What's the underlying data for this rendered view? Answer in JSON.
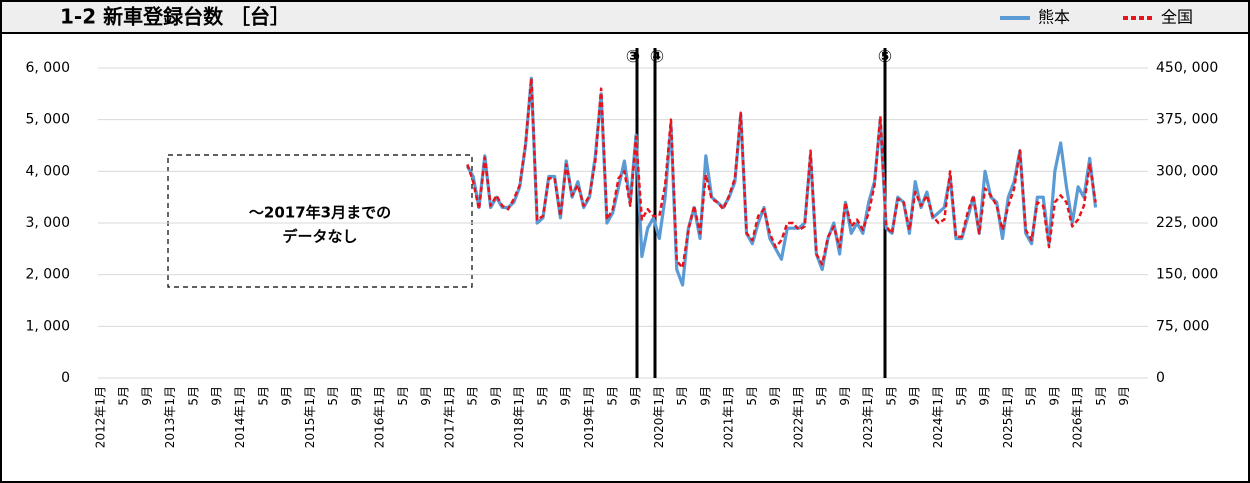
{
  "chart_data": {
    "type": "line",
    "title": "1-2 新車登録台数 ［台］",
    "note": [
      "～2017年3月までの",
      "データなし"
    ],
    "annotations": [
      "③",
      "④",
      "⑤"
    ],
    "categories": [
      "2012年1月",
      null,
      null,
      null,
      "5月",
      null,
      null,
      null,
      "9月",
      null,
      null,
      null,
      "2013年1月",
      null,
      null,
      null,
      "5月",
      null,
      null,
      null,
      "9月",
      null,
      null,
      null,
      "2014年1月",
      null,
      null,
      null,
      "5月",
      null,
      null,
      null,
      "9月",
      null,
      null,
      null,
      "2015年1月",
      null,
      null,
      null,
      "5月",
      null,
      null,
      null,
      "9月",
      null,
      null,
      null,
      "2016年1月",
      null,
      null,
      null,
      "5月",
      null,
      null,
      null,
      "9月",
      null,
      null,
      null,
      "2017年1月",
      null,
      null,
      null,
      "5月",
      null,
      null,
      null,
      "9月",
      null,
      null,
      null,
      "2018年1月",
      null,
      null,
      null,
      "5月",
      null,
      null,
      null,
      "9月",
      null,
      null,
      null,
      "2019年1月",
      null,
      null,
      null,
      "5月",
      null,
      null,
      null,
      "9月",
      null,
      null,
      null,
      "2020年1月",
      null,
      null,
      null,
      "5月",
      null,
      null,
      null,
      "9月",
      null,
      null,
      null,
      "2021年1月",
      null,
      null,
      null,
      "5月",
      null,
      null,
      null,
      "9月",
      null,
      null,
      null,
      "2022年1月",
      null,
      null,
      null,
      "5月",
      null,
      null,
      null,
      "9月",
      null,
      null,
      null,
      "2023年1月",
      null,
      null,
      null,
      "5月",
      null,
      null,
      null,
      "9月",
      null,
      null,
      null,
      "2024年1月",
      null,
      null,
      null,
      "5月",
      null,
      null,
      null,
      "9月",
      null,
      null,
      null,
      "2025年1月",
      null,
      null,
      null,
      "5月",
      null,
      null,
      null,
      "9月",
      null,
      null,
      null,
      "2026年1月",
      null,
      null,
      null,
      "5月",
      null,
      null,
      null,
      "9月",
      null,
      null,
      null
    ],
    "series": [
      {
        "name": "熊本",
        "color": "#5b9bd5",
        "dash": false,
        "values": [
          null,
          null,
          null,
          null,
          null,
          null,
          null,
          null,
          null,
          null,
          null,
          null,
          null,
          null,
          null,
          null,
          null,
          null,
          null,
          null,
          null,
          null,
          null,
          null,
          null,
          null,
          null,
          null,
          null,
          null,
          null,
          null,
          null,
          null,
          null,
          null,
          null,
          null,
          null,
          null,
          null,
          null,
          null,
          null,
          null,
          null,
          null,
          null,
          null,
          null,
          null,
          null,
          null,
          null,
          null,
          null,
          null,
          null,
          null,
          null,
          null,
          null,
          null,
          4100,
          3900,
          3300,
          4300,
          3300,
          3500,
          3300,
          3300,
          3400,
          3700,
          4500,
          5800,
          3000,
          3100,
          3900,
          3900,
          3100,
          4200,
          3500,
          3800,
          3300,
          3500,
          4300,
          5500,
          3000,
          3200,
          3700,
          4200,
          3400,
          4700,
          2350,
          2900,
          3100,
          2700,
          3500,
          4900,
          2100,
          1800,
          2900,
          3300,
          2700,
          4300,
          3500,
          3400,
          3300,
          3500,
          3800,
          5100,
          2800,
          2600,
          3000,
          3300,
          2700,
          2500,
          2300,
          2900,
          2900,
          2900,
          3000,
          4300,
          2400,
          2100,
          2700,
          3000,
          2400,
          3400,
          2800,
          3000,
          2800,
          3400,
          3800,
          5000,
          2900,
          2800,
          3500,
          3400,
          2800,
          3800,
          3300,
          3600,
          3100,
          3200,
          3300,
          3900,
          2700,
          2700,
          3100,
          3500,
          2800,
          4000,
          3500,
          3400,
          2700,
          3500,
          3800,
          4400,
          2800,
          2600,
          3500,
          3500,
          2600,
          4000,
          4550,
          3700,
          3000,
          3700,
          3500,
          4250,
          3300,
          null,
          null,
          null,
          null,
          null,
          null,
          null,
          null
        ]
      },
      {
        "name": "全国",
        "color": "#e8141c",
        "dash": true,
        "axis": "y2",
        "values": [
          null,
          null,
          null,
          null,
          null,
          null,
          null,
          null,
          null,
          null,
          null,
          null,
          null,
          null,
          null,
          null,
          null,
          null,
          null,
          null,
          null,
          null,
          null,
          null,
          null,
          null,
          null,
          null,
          null,
          null,
          null,
          null,
          null,
          null,
          null,
          null,
          null,
          null,
          null,
          null,
          null,
          null,
          null,
          null,
          null,
          null,
          null,
          null,
          null,
          null,
          null,
          null,
          null,
          null,
          null,
          null,
          null,
          null,
          null,
          null,
          null,
          null,
          null,
          310000,
          285000,
          245000,
          320000,
          250000,
          265000,
          250000,
          245000,
          260000,
          280000,
          340000,
          435000,
          230000,
          235000,
          290000,
          290000,
          235000,
          310000,
          265000,
          280000,
          250000,
          265000,
          315000,
          420000,
          230000,
          245000,
          290000,
          300000,
          250000,
          350000,
          230000,
          245000,
          235000,
          235000,
          280000,
          375000,
          170000,
          160000,
          215000,
          250000,
          210000,
          295000,
          260000,
          255000,
          245000,
          265000,
          290000,
          385000,
          210000,
          200000,
          235000,
          245000,
          210000,
          190000,
          200000,
          225000,
          225000,
          215000,
          220000,
          330000,
          180000,
          165000,
          205000,
          220000,
          190000,
          255000,
          220000,
          230000,
          215000,
          240000,
          280000,
          380000,
          220000,
          210000,
          260000,
          255000,
          215000,
          270000,
          250000,
          265000,
          235000,
          225000,
          230000,
          300000,
          205000,
          205000,
          240000,
          265000,
          210000,
          275000,
          265000,
          250000,
          215000,
          250000,
          275000,
          330000,
          215000,
          200000,
          255000,
          250000,
          190000,
          255000,
          265000,
          255000,
          220000,
          230000,
          250000,
          310000,
          255000,
          null,
          null,
          null,
          null,
          null,
          null,
          null,
          null
        ]
      }
    ],
    "ylim": [
      0,
      6000
    ],
    "yticks": [
      0,
      {
        "value": 1000,
        "label": "1, 000"
      },
      {
        "value": 2000,
        "label": "2, 000"
      },
      {
        "value": 3000,
        "label": "3, 000"
      },
      {
        "value": 4000,
        "label": "4, 000"
      },
      {
        "value": 5000,
        "label": "5, 000"
      },
      {
        "value": 6000,
        "label": "6, 000"
      }
    ],
    "y2lim": [
      0,
      450000
    ],
    "y2ticks": [
      0,
      {
        "value": 75000,
        "label": "75, 000"
      },
      {
        "value": 150000,
        "label": "150, 000"
      },
      {
        "value": 225000,
        "label": "225, 000"
      },
      {
        "value": 300000,
        "label": "300, 000"
      },
      {
        "value": 375000,
        "label": "375, 000"
      },
      {
        "value": 450000,
        "label": "450, 000"
      }
    ],
    "grid": true
  }
}
